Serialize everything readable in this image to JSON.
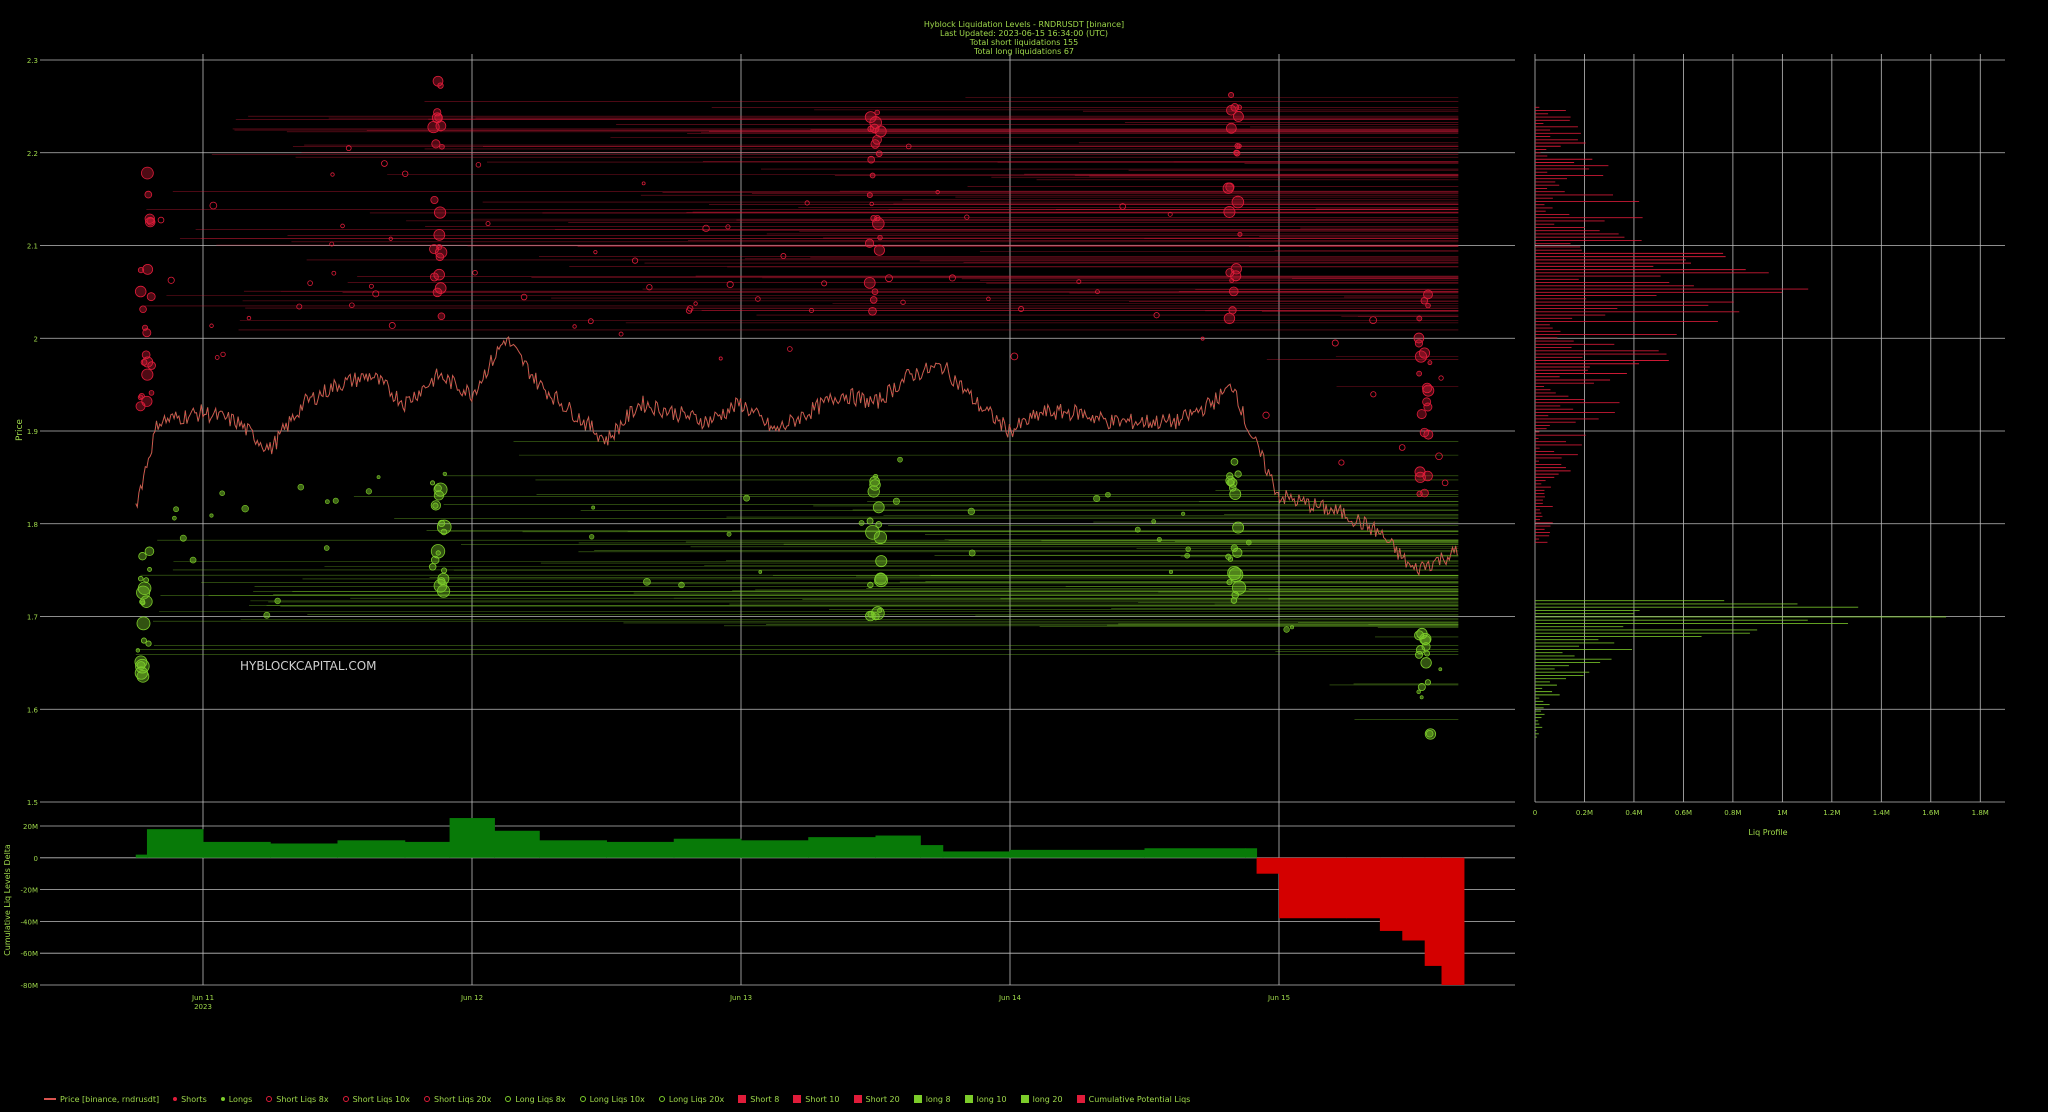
{
  "header": {
    "line1": "Hyblock Liquidation Levels - RNDRUSDT [binance]",
    "line2": "Last Updated: 2023-06-15 16:34:00 (UTC)",
    "line3": "Total short liquidations 155",
    "line4": "Total long liquidations 67"
  },
  "watermark": "HYBLOCKCAPITAL.COM",
  "colors": {
    "short": "#e01c3a",
    "long": "#7ccc2a",
    "text": "#9ed84a",
    "grid": "#bdbdbd",
    "delta_pos": "#087a08",
    "delta_neg": "#d40000"
  },
  "chart_data": [
    {
      "type": "line",
      "title": "Hyblock Liquidation Levels - RNDRUSDT [binance]",
      "ylabel": "Price",
      "ylim": [
        1.5,
        2.3
      ],
      "yticks": [
        "1.5",
        "1.6",
        "1.7",
        "1.8",
        "1.9",
        "2",
        "2.1",
        "2.2",
        "2.3"
      ],
      "xticks": [
        "Jun 11\n2023",
        "Jun 12",
        "Jun 13",
        "Jun 14",
        "Jun 15"
      ],
      "series": [
        {
          "name": "Price [binance, rndrusdt]",
          "x": [
            "Jun 10 18:00",
            "Jun 10 20:00",
            "Jun 11 00:00",
            "Jun 11 03:00",
            "Jun 11 06:00",
            "Jun 11 09:00",
            "Jun 11 12:00",
            "Jun 11 15:00",
            "Jun 11 18:00",
            "Jun 11 21:00",
            "Jun 12 00:00",
            "Jun 12 03:00",
            "Jun 12 06:00",
            "Jun 12 09:00",
            "Jun 12 12:00",
            "Jun 12 15:00",
            "Jun 12 18:00",
            "Jun 12 21:00",
            "Jun 13 00:00",
            "Jun 13 03:00",
            "Jun 13 06:00",
            "Jun 13 09:00",
            "Jun 13 12:00",
            "Jun 13 15:00",
            "Jun 13 18:00",
            "Jun 13 21:00",
            "Jun 14 00:00",
            "Jun 14 03:00",
            "Jun 14 06:00",
            "Jun 14 09:00",
            "Jun 14 12:00",
            "Jun 14 15:00",
            "Jun 14 18:00",
            "Jun 14 20:00",
            "Jun 14 21:00",
            "Jun 15 00:00",
            "Jun 15 03:00",
            "Jun 15 06:00",
            "Jun 15 09:00",
            "Jun 15 12:00",
            "Jun 15 14:00",
            "Jun 15 16:00"
          ],
          "values": [
            1.82,
            1.91,
            1.92,
            1.91,
            1.88,
            1.93,
            1.95,
            1.96,
            1.93,
            1.96,
            1.94,
            2.0,
            1.95,
            1.92,
            1.89,
            1.93,
            1.92,
            1.91,
            1.93,
            1.9,
            1.92,
            1.94,
            1.93,
            1.96,
            1.97,
            1.93,
            1.9,
            1.92,
            1.92,
            1.91,
            1.91,
            1.91,
            1.93,
            1.95,
            1.91,
            1.83,
            1.82,
            1.81,
            1.79,
            1.75,
            1.76,
            1.77
          ]
        }
      ],
      "legend": [
        "Price [binance, rndrusdt]",
        "Shorts",
        "Longs",
        "Short Liqs 8x",
        "Short Liqs 10x",
        "Short Liqs 20x",
        "Long Liqs 8x",
        "Long Liqs 10x",
        "Long Liqs 20x",
        "Short 8",
        "Short 10",
        "Short 20",
        "long 8",
        "long 10",
        "long 20",
        "Cumulative Potential Liqs"
      ],
      "legend_placement": "bottom-left",
      "grid": true
    },
    {
      "type": "area",
      "ylabel": "Cumulative Liq Levels Delta",
      "ylim": [
        -80000000,
        20000000
      ],
      "yticks": [
        "20M",
        "0",
        "-20M",
        "-40M",
        "-60M",
        "-80M"
      ],
      "x": [
        "Jun 10 18:00",
        "Jun 10 19:00",
        "Jun 11 00:00",
        "Jun 11 06:00",
        "Jun 11 12:00",
        "Jun 11 18:00",
        "Jun 11 22:00",
        "Jun 12 02:00",
        "Jun 12 06:00",
        "Jun 12 12:00",
        "Jun 12 18:00",
        "Jun 13 00:00",
        "Jun 13 06:00",
        "Jun 13 12:00",
        "Jun 13 16:00",
        "Jun 13 18:00",
        "Jun 14 00:00",
        "Jun 14 12:00",
        "Jun 14 21:00",
        "Jun 14 22:00",
        "Jun 15 00:00",
        "Jun 15 06:00",
        "Jun 15 09:00",
        "Jun 15 11:00",
        "Jun 15 13:00",
        "Jun 15 14:30",
        "Jun 15 16:30"
      ],
      "values": [
        2000000,
        18000000,
        10000000,
        9000000,
        11000000,
        10000000,
        25000000,
        17000000,
        11000000,
        10000000,
        12000000,
        11000000,
        13000000,
        14000000,
        8000000,
        4000000,
        5000000,
        6000000,
        6000000,
        -10000000,
        -38000000,
        -38000000,
        -46000000,
        -52000000,
        -68000000,
        -80000000,
        -78000000
      ]
    },
    {
      "type": "bar",
      "title": "Liq Profile",
      "orientation": "horizontal",
      "xlim": [
        0,
        1900000
      ],
      "xticks": [
        "0",
        "0.2M",
        "0.4M",
        "0.6M",
        "0.8M",
        "1M",
        "1.2M",
        "1.4M",
        "1.6M",
        "1.8M"
      ],
      "series": [
        {
          "name": "Short",
          "price_range": [
            1.78,
            2.25
          ],
          "peak_value": 1300000,
          "peak_price": 2.05
        },
        {
          "name": "long",
          "price_range": [
            1.57,
            1.72
          ],
          "peak_value": 1850000,
          "peak_price": 1.7
        }
      ]
    }
  ]
}
